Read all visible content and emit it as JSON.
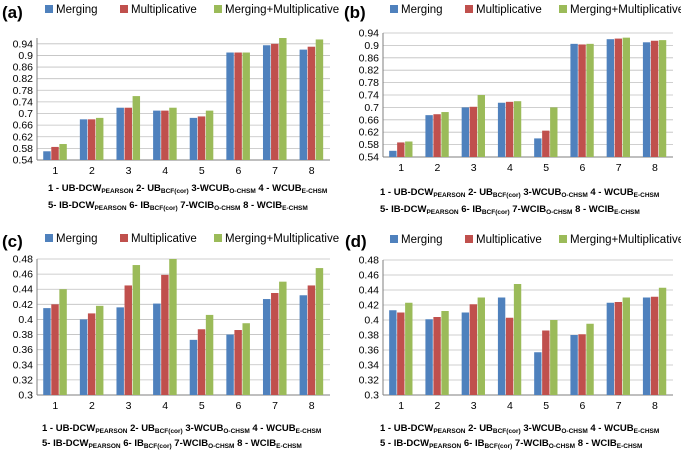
{
  "colors": {
    "Merging": "#4F81BD",
    "Multiplicative": "#C0504D",
    "Merging+Multiplicative": "#9BBB59"
  },
  "chart_data": [
    {
      "type": "bar",
      "panel_label": "(a)",
      "categories": [
        "1",
        "2",
        "3",
        "4",
        "5",
        "6",
        "7",
        "8"
      ],
      "series": [
        {
          "name": "Merging",
          "values": [
            0.57,
            0.68,
            0.72,
            0.71,
            0.685,
            0.91,
            0.935,
            0.92
          ]
        },
        {
          "name": "Multiplicative",
          "values": [
            0.585,
            0.68,
            0.72,
            0.71,
            0.69,
            0.91,
            0.94,
            0.93
          ]
        },
        {
          "name": "Merging+Multiplicative",
          "values": [
            0.595,
            0.685,
            0.76,
            0.72,
            0.71,
            0.91,
            0.96,
            0.955
          ]
        }
      ],
      "ylim": [
        0.54,
        0.96
      ],
      "yticks": [
        "0.54",
        "0.58",
        "0.62",
        "0.66",
        "0.7",
        "0.74",
        "0.78",
        "0.82",
        "0.86",
        "0.9",
        "0.94"
      ],
      "legend_position": "top",
      "grid": true
    },
    {
      "type": "bar",
      "panel_label": "(b)",
      "categories": [
        "1",
        "2",
        "3",
        "4",
        "5",
        "6",
        "7",
        "8"
      ],
      "series": [
        {
          "name": "Merging",
          "values": [
            0.56,
            0.675,
            0.7,
            0.715,
            0.6,
            0.905,
            0.92,
            0.91
          ]
        },
        {
          "name": "Multiplicative",
          "values": [
            0.587,
            0.678,
            0.702,
            0.718,
            0.625,
            0.903,
            0.922,
            0.915
          ]
        },
        {
          "name": "Merging+Multiplicative",
          "values": [
            0.59,
            0.685,
            0.74,
            0.72,
            0.7,
            0.905,
            0.925,
            0.917
          ]
        }
      ],
      "ylim": [
        0.54,
        0.94
      ],
      "yticks": [
        "0.54",
        "0.58",
        "0.62",
        "0.66",
        "0.7",
        "0.74",
        "0.78",
        "0.82",
        "0.86",
        "0.9",
        "0.94"
      ],
      "legend_position": "top",
      "grid": true
    },
    {
      "type": "bar",
      "panel_label": "(c)",
      "categories": [
        "1",
        "2",
        "3",
        "4",
        "5",
        "6",
        "7",
        "8"
      ],
      "series": [
        {
          "name": "Merging",
          "values": [
            0.415,
            0.4,
            0.416,
            0.421,
            0.373,
            0.38,
            0.427,
            0.432
          ]
        },
        {
          "name": "Multiplicative",
          "values": [
            0.42,
            0.408,
            0.445,
            0.459,
            0.387,
            0.386,
            0.435,
            0.445
          ]
        },
        {
          "name": "Merging+Multiplicative",
          "values": [
            0.44,
            0.418,
            0.472,
            0.48,
            0.406,
            0.395,
            0.45,
            0.468
          ]
        }
      ],
      "ylim": [
        0.3,
        0.48
      ],
      "yticks": [
        "0.3",
        "0.32",
        "0.34",
        "0.36",
        "0.38",
        "0.4",
        "0.42",
        "0.44",
        "0.46",
        "0.48"
      ],
      "legend_position": "top",
      "grid": true
    },
    {
      "type": "bar",
      "panel_label": "(d)",
      "categories": [
        "1",
        "2",
        "3",
        "4",
        "5",
        "6",
        "7",
        "8"
      ],
      "series": [
        {
          "name": "Merging",
          "values": [
            0.413,
            0.401,
            0.41,
            0.43,
            0.357,
            0.38,
            0.423,
            0.43
          ]
        },
        {
          "name": "Multiplicative",
          "values": [
            0.41,
            0.404,
            0.421,
            0.403,
            0.386,
            0.381,
            0.424,
            0.431
          ]
        },
        {
          "name": "Merging+Multiplicative",
          "values": [
            0.423,
            0.412,
            0.43,
            0.448,
            0.4,
            0.395,
            0.43,
            0.443
          ]
        }
      ],
      "ylim": [
        0.3,
        0.48
      ],
      "yticks": [
        "0.3",
        "0.32",
        "0.34",
        "0.36",
        "0.38",
        "0.4",
        "0.42",
        "0.44",
        "0.46",
        "0.48"
      ],
      "legend_position": "top",
      "grid": true
    }
  ],
  "captions": {
    "a": [
      [
        [
          "1 - UB-DCW",
          ""
        ],
        [
          "PEARSON",
          "sub"
        ],
        [
          " 2- UB",
          ""
        ],
        [
          "BCF(cor)",
          "sub"
        ],
        [
          " 3-WCUB",
          ""
        ],
        [
          "O-CHSM",
          "sub"
        ],
        [
          "    4 - WCUB",
          ""
        ],
        [
          "E-CHSM",
          "sub"
        ]
      ],
      [
        [
          "5- IB-DCW",
          ""
        ],
        [
          "PEARSON",
          "sub"
        ],
        [
          "  6- IB",
          ""
        ],
        [
          "BCF(cor)",
          "sub"
        ],
        [
          "  7-WCIB",
          ""
        ],
        [
          "O-CHSM",
          "sub"
        ],
        [
          "   8 - WCIB",
          ""
        ],
        [
          "E-CHSM",
          "sub"
        ]
      ]
    ],
    "b": [
      [
        [
          "1 - UB-DCW",
          ""
        ],
        [
          "PEARSON",
          "sub"
        ],
        [
          " 2- UB",
          ""
        ],
        [
          "BCF(cor)",
          "sub"
        ],
        [
          " 3-WCUB",
          ""
        ],
        [
          "O-CHSM",
          "sub"
        ],
        [
          "    4 - WCUB",
          ""
        ],
        [
          "E-CHSM",
          "sub"
        ]
      ],
      [
        [
          "5- IB-DCW",
          ""
        ],
        [
          "PEARSON",
          "sub"
        ],
        [
          "  6- IB",
          ""
        ],
        [
          "BCF(cor)",
          "sub"
        ],
        [
          "  7-WCIB",
          ""
        ],
        [
          "O-CHSM",
          "sub"
        ],
        [
          "   8 - WCIB",
          ""
        ],
        [
          "E-CHSM",
          "sub"
        ]
      ]
    ],
    "c": [
      [
        [
          "1 - UB-DCW",
          ""
        ],
        [
          "PEARSON",
          "sub"
        ],
        [
          " 2- UB",
          ""
        ],
        [
          "BCF(cor)",
          "sub"
        ],
        [
          " 3-WCUB",
          ""
        ],
        [
          "O-CHSM",
          "sub"
        ],
        [
          "  4 - WCUB",
          ""
        ],
        [
          "E-CHSM",
          "sub"
        ]
      ],
      [
        [
          "5- IB-DCW",
          ""
        ],
        [
          "PEARSON",
          "sub"
        ],
        [
          "   6- IB",
          ""
        ],
        [
          "BCF(cor)",
          "sub"
        ],
        [
          "   7-WCIB",
          ""
        ],
        [
          "O-CHSM",
          "sub"
        ],
        [
          "  8 - WCIB",
          ""
        ],
        [
          "E-CHSM",
          "sub"
        ]
      ]
    ],
    "d": [
      [
        [
          "1 - UB-DCW",
          ""
        ],
        [
          "PEARSON",
          "sub"
        ],
        [
          " 2- UB",
          ""
        ],
        [
          "BCF(cor)",
          "sub"
        ],
        [
          " 3-WCUB",
          ""
        ],
        [
          "O-CHSM",
          "sub"
        ],
        [
          "   4 - WCUB",
          ""
        ],
        [
          "E-CHSM",
          "sub"
        ]
      ],
      [
        [
          "5 - IB-DCW",
          ""
        ],
        [
          "PEARSON",
          "sub"
        ],
        [
          "  6- IB",
          ""
        ],
        [
          "BCF(cor)",
          "sub"
        ],
        [
          "  7-WCIB",
          ""
        ],
        [
          "O-CHSM",
          "sub"
        ],
        [
          "   8 - WCIB",
          ""
        ],
        [
          "E-CHSM",
          "sub"
        ]
      ]
    ]
  }
}
